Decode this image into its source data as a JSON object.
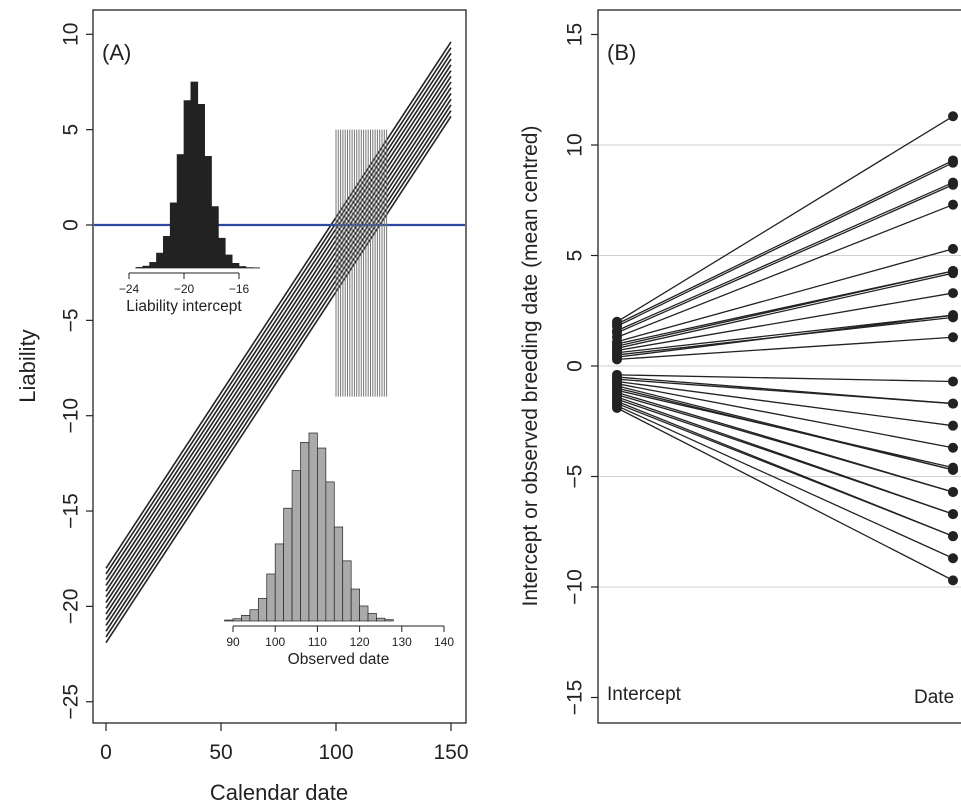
{
  "colors": {
    "ink": "#222222",
    "reference_line": "#2b4aa0",
    "hist_dark": "#222222",
    "hist_light": "#aaaaaa",
    "observed_bars": "#888888",
    "grid": "#d0d0d0"
  },
  "chart_data": [
    {
      "id": "A",
      "type": "line",
      "panel_label": "(A)",
      "xlabel": "Calendar date",
      "ylabel": "Liability",
      "xlim": [
        0,
        150
      ],
      "ylim": [
        -25,
        10
      ],
      "x_ticks": [
        0,
        50,
        100,
        150
      ],
      "y_ticks": [
        -25,
        -20,
        -15,
        -10,
        -5,
        0,
        5,
        10
      ],
      "reference_line": {
        "y": 0,
        "color": "#2b4aa0"
      },
      "slope": 0.184,
      "intercepts": [
        -21.9,
        -21.6,
        -21.3,
        -21.0,
        -20.7,
        -20.4,
        -20.1,
        -19.8,
        -19.5,
        -19.2,
        -18.9,
        -18.6,
        -18.3,
        -18.0
      ],
      "observed_dates": [
        100,
        101,
        102,
        103,
        104,
        105,
        106,
        107,
        108,
        109,
        110,
        111,
        112,
        113,
        114,
        115,
        116,
        117,
        118,
        119,
        120,
        121,
        122
      ],
      "observed_marks_range": [
        -9,
        5
      ],
      "insets": [
        {
          "type": "bar",
          "xlabel": "Liability intercept",
          "x_ticks": [
            -24,
            -20,
            -16
          ],
          "bin_width": 0.5,
          "bins_start": -23.5,
          "values": [
            0.003,
            0.01,
            0.03,
            0.08,
            0.17,
            0.35,
            0.61,
            0.9,
            1.0,
            0.88,
            0.6,
            0.33,
            0.16,
            0.07,
            0.025,
            0.008,
            0.002,
            0.001
          ]
        },
        {
          "type": "bar",
          "xlabel": "Observed date",
          "x_ticks": [
            90,
            100,
            110,
            120,
            130,
            140
          ],
          "bin_width": 2,
          "bins_start": 88,
          "values": [
            0.005,
            0.012,
            0.03,
            0.06,
            0.12,
            0.25,
            0.41,
            0.6,
            0.8,
            0.95,
            1.0,
            0.92,
            0.74,
            0.5,
            0.32,
            0.17,
            0.08,
            0.04,
            0.015,
            0.007
          ]
        }
      ]
    },
    {
      "id": "B",
      "type": "line",
      "panel_label": "(B)",
      "ylabel": "Intercept or observed breeding date (mean centred)",
      "ylim": [
        -15,
        15
      ],
      "y_ticks": [
        -15,
        -10,
        -5,
        0,
        5,
        10,
        15
      ],
      "grid": true,
      "x_categories": [
        "Intercept",
        "Date"
      ],
      "series": [
        {
          "values": [
            2.0,
            11.3
          ]
        },
        {
          "values": [
            1.9,
            9.3
          ]
        },
        {
          "values": [
            1.8,
            9.2
          ]
        },
        {
          "values": [
            1.6,
            8.3
          ]
        },
        {
          "values": [
            1.5,
            8.2
          ]
        },
        {
          "values": [
            1.3,
            7.3
          ]
        },
        {
          "values": [
            1.1,
            5.3
          ]
        },
        {
          "values": [
            1.0,
            4.3
          ]
        },
        {
          "values": [
            0.9,
            4.3
          ]
        },
        {
          "values": [
            0.8,
            4.2
          ]
        },
        {
          "values": [
            0.7,
            3.3
          ]
        },
        {
          "values": [
            0.6,
            2.3
          ]
        },
        {
          "values": [
            0.5,
            2.2
          ]
        },
        {
          "values": [
            0.4,
            2.3
          ]
        },
        {
          "values": [
            0.3,
            1.3
          ]
        },
        {
          "values": [
            -0.4,
            -0.7
          ]
        },
        {
          "values": [
            -0.5,
            -1.7
          ]
        },
        {
          "values": [
            -0.6,
            -1.7
          ]
        },
        {
          "values": [
            -0.7,
            -2.7
          ]
        },
        {
          "values": [
            -0.8,
            -3.7
          ]
        },
        {
          "values": [
            -0.9,
            -4.7
          ]
        },
        {
          "values": [
            -1.0,
            -4.7
          ]
        },
        {
          "values": [
            -1.1,
            -4.6
          ]
        },
        {
          "values": [
            -1.2,
            -5.7
          ]
        },
        {
          "values": [
            -1.3,
            -5.7
          ]
        },
        {
          "values": [
            -1.4,
            -6.7
          ]
        },
        {
          "values": [
            -1.5,
            -6.7
          ]
        },
        {
          "values": [
            -1.6,
            -7.7
          ]
        },
        {
          "values": [
            -1.7,
            -7.7
          ]
        },
        {
          "values": [
            -1.8,
            -8.7
          ]
        },
        {
          "values": [
            -1.9,
            -9.7
          ]
        }
      ]
    }
  ]
}
